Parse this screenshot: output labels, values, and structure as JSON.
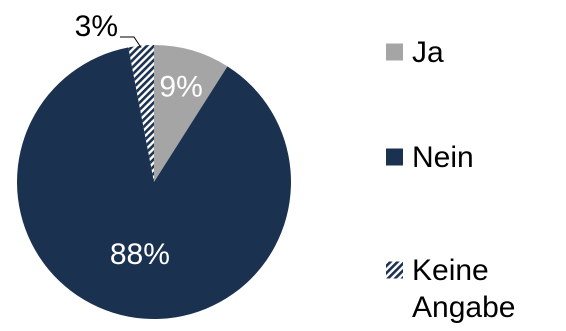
{
  "chart_data": {
    "type": "pie",
    "title": "",
    "categories": [
      "Ja",
      "Nein",
      "Keine Angabe"
    ],
    "values": [
      9,
      88,
      3
    ],
    "labels": [
      "9%",
      "88%",
      "3%"
    ],
    "legend": {
      "position": "right",
      "entries": [
        {
          "lines": [
            "Ja"
          ]
        },
        {
          "lines": [
            "Nein"
          ]
        },
        {
          "lines": [
            "Keine",
            "Angabe"
          ]
        }
      ]
    },
    "colors": {
      "ja": "#a5a5a5",
      "nein": "#1b3150",
      "keine_angabe": "#1b3150",
      "hatch_bg": "#ffffff",
      "label_light": "#ffffff",
      "label_dark": "#000000"
    },
    "start_angle_deg": 0,
    "direction": "clockwise"
  }
}
